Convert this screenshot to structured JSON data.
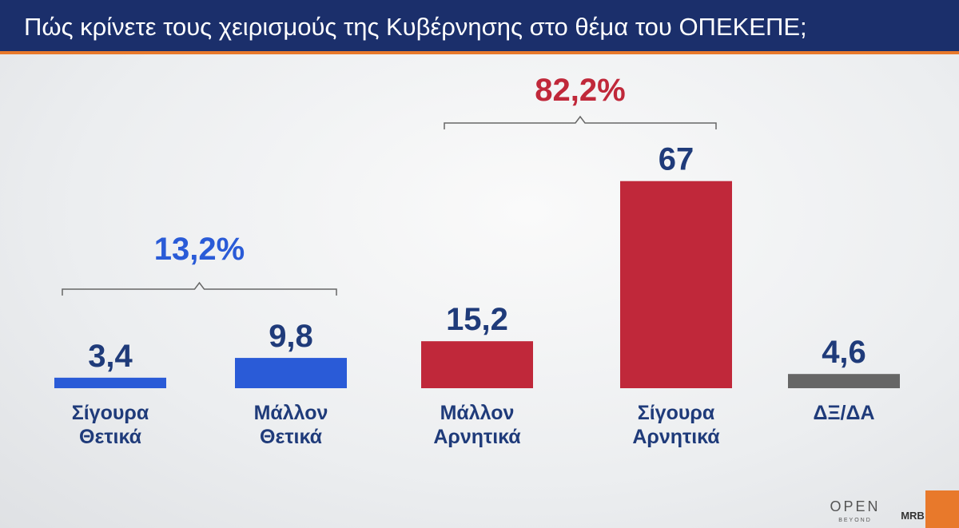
{
  "chart_data": {
    "type": "bar",
    "title": "Πώς κρίνετε τους χειρισμούς της Κυβέρνησης στο θέμα του ΟΠΕΚΕΠΕ;",
    "categories": [
      "Σίγουρα\nΘετικά",
      "Μάλλον\nΘετικά",
      "Μάλλον\nΑρνητικά",
      "Σίγουρα\nΑρνητικά",
      "ΔΞ/ΔΑ"
    ],
    "values": [
      3.4,
      9.8,
      15.2,
      67,
      4.6
    ],
    "value_labels": [
      "3,4",
      "9,8",
      "15,2",
      "67",
      "4,6"
    ],
    "colors": [
      "#2a5bd7",
      "#2a5bd7",
      "#c0283a",
      "#c0283a",
      "#666666"
    ],
    "groups": [
      {
        "value": 13.2,
        "label": "13,2%",
        "color": "#2a5bd7"
      },
      {
        "value": 82.2,
        "label": "82,2%",
        "color": "#c0283a"
      }
    ]
  },
  "logos": {
    "channel": "OPEN",
    "channel_sub": "BEYOND",
    "pollster": "MRB"
  }
}
